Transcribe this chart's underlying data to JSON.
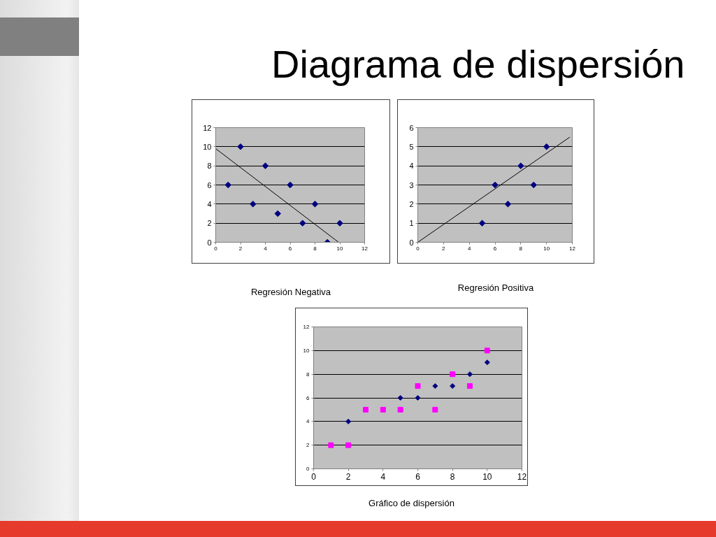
{
  "chart_data": [
    {
      "type": "other",
      "title": "Diagrama de dispersión"
    },
    {
      "type": "scatter",
      "title": "Regresión Negativa",
      "xlim": [
        0,
        12
      ],
      "xticks": [
        0,
        2,
        4,
        6,
        8,
        10,
        12
      ],
      "ylim": [
        0,
        12
      ],
      "yticks": [
        0,
        2,
        4,
        6,
        8,
        10,
        12
      ],
      "grid": "y",
      "series": [
        {
          "color": "#000080",
          "marker": "diamond",
          "x": [
            1,
            2,
            3,
            4,
            5,
            6,
            7,
            8,
            9,
            10
          ],
          "values": [
            6,
            10,
            4,
            8,
            3,
            6,
            2,
            4,
            0,
            2
          ]
        },
        {
          "type": "line",
          "color": "#000000",
          "marker": "none",
          "x": [
            0,
            9.9
          ],
          "values": [
            9.8,
            0
          ]
        }
      ]
    },
    {
      "type": "scatter",
      "title": "Regresión Positiva",
      "xlim": [
        0,
        12
      ],
      "xticks": [
        0,
        2,
        4,
        6,
        8,
        10,
        12
      ],
      "ylim": [
        0,
        6
      ],
      "yticks": [
        0,
        1,
        2,
        3,
        4,
        5,
        6
      ],
      "grid": "y",
      "series": [
        {
          "color": "#000080",
          "marker": "diamond",
          "x": [
            5,
            6,
            7,
            8,
            9,
            10
          ],
          "values": [
            1,
            3,
            2,
            4,
            3,
            5
          ]
        },
        {
          "type": "line",
          "color": "#000000",
          "marker": "none",
          "x": [
            0,
            11.8
          ],
          "values": [
            0,
            5.5
          ]
        }
      ]
    },
    {
      "type": "scatter",
      "title": "Gráfico de dispersión",
      "xlim": [
        0,
        12
      ],
      "xticks": [
        0,
        2,
        4,
        6,
        8,
        10,
        12
      ],
      "ylim": [
        0,
        12
      ],
      "yticks": [
        0,
        2,
        4,
        6,
        8,
        10,
        12
      ],
      "grid": "y",
      "series": [
        {
          "color": "#000080",
          "marker": "diamond",
          "x": [
            2,
            5,
            6,
            7,
            8,
            9,
            10
          ],
          "values": [
            4,
            6,
            6,
            7,
            7,
            8,
            9
          ]
        },
        {
          "color": "#ff00ff",
          "marker": "square",
          "x": [
            1,
            2,
            3,
            4,
            5,
            6,
            7,
            8,
            9,
            10
          ],
          "values": [
            2,
            2,
            5,
            5,
            5,
            7,
            5,
            8,
            7,
            10
          ]
        }
      ]
    }
  ]
}
